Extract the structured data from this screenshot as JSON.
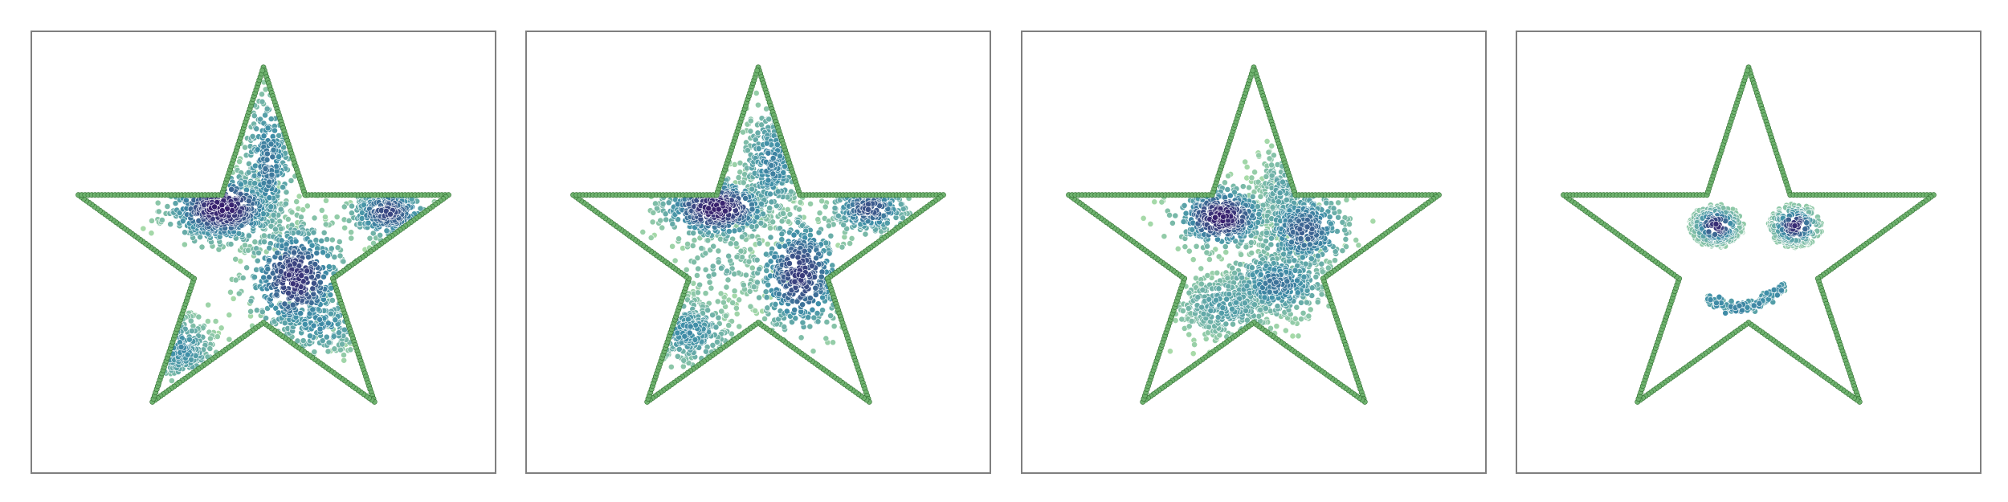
{
  "figure": {
    "panels": 4
  },
  "colors": {
    "boundary_fill": "#6fb26f",
    "boundary_stroke": "#2f6d2f",
    "low_density": "#a8dba8",
    "mid_density": "#3f8fa8",
    "high_density": "#38206e",
    "frame": "#7f7f7f"
  },
  "chart_data": [
    {
      "type": "scatter",
      "title": "",
      "xlabel": "",
      "ylabel": "",
      "grid": false,
      "axes_ticks": false,
      "xlim": [
        0,
        1
      ],
      "ylim": [
        0,
        1
      ],
      "boundary": {
        "shape": "star",
        "vertices": [
          [
            0.5,
            0.92
          ],
          [
            0.59,
            0.63
          ],
          [
            0.9,
            0.63
          ],
          [
            0.65,
            0.44
          ],
          [
            0.74,
            0.16
          ],
          [
            0.5,
            0.34
          ],
          [
            0.26,
            0.16
          ],
          [
            0.35,
            0.44
          ],
          [
            0.1,
            0.63
          ],
          [
            0.41,
            0.63
          ]
        ]
      },
      "clusters": [
        {
          "cx": 0.41,
          "cy": 0.6,
          "sx": 0.06,
          "sy": 0.04,
          "n": 520,
          "density": 1.0
        },
        {
          "cx": 0.57,
          "cy": 0.44,
          "sx": 0.055,
          "sy": 0.065,
          "n": 480,
          "density": 0.9
        },
        {
          "cx": 0.77,
          "cy": 0.59,
          "sx": 0.045,
          "sy": 0.03,
          "n": 260,
          "density": 0.8
        },
        {
          "cx": 0.51,
          "cy": 0.7,
          "sx": 0.03,
          "sy": 0.09,
          "n": 300,
          "density": 0.6
        },
        {
          "cx": 0.32,
          "cy": 0.28,
          "sx": 0.04,
          "sy": 0.04,
          "n": 200,
          "density": 0.5
        },
        {
          "cx": 0.62,
          "cy": 0.34,
          "sx": 0.06,
          "sy": 0.04,
          "n": 180,
          "density": 0.5
        }
      ]
    },
    {
      "type": "scatter",
      "title": "",
      "xlabel": "",
      "ylabel": "",
      "grid": false,
      "axes_ticks": false,
      "xlim": [
        0,
        1
      ],
      "ylim": [
        0,
        1
      ],
      "boundary": {
        "shape": "star"
      },
      "clusters": [
        {
          "cx": 0.41,
          "cy": 0.6,
          "sx": 0.06,
          "sy": 0.035,
          "n": 460,
          "density": 1.0
        },
        {
          "cx": 0.59,
          "cy": 0.45,
          "sx": 0.05,
          "sy": 0.07,
          "n": 440,
          "density": 0.85
        },
        {
          "cx": 0.74,
          "cy": 0.6,
          "sx": 0.045,
          "sy": 0.03,
          "n": 240,
          "density": 0.75
        },
        {
          "cx": 0.53,
          "cy": 0.7,
          "sx": 0.035,
          "sy": 0.07,
          "n": 300,
          "density": 0.55
        },
        {
          "cx": 0.35,
          "cy": 0.32,
          "sx": 0.05,
          "sy": 0.04,
          "n": 260,
          "density": 0.5
        },
        {
          "cx": 0.42,
          "cy": 0.47,
          "sx": 0.06,
          "sy": 0.06,
          "n": 120,
          "density": 0.25
        }
      ]
    },
    {
      "type": "scatter",
      "title": "",
      "xlabel": "",
      "ylabel": "",
      "grid": false,
      "axes_ticks": false,
      "xlim": [
        0,
        1
      ],
      "ylim": [
        0,
        1
      ],
      "boundary": {
        "shape": "star"
      },
      "clusters": [
        {
          "cx": 0.43,
          "cy": 0.58,
          "sx": 0.05,
          "sy": 0.035,
          "n": 420,
          "density": 1.0
        },
        {
          "cx": 0.61,
          "cy": 0.55,
          "sx": 0.05,
          "sy": 0.05,
          "n": 420,
          "density": 0.7
        },
        {
          "cx": 0.55,
          "cy": 0.43,
          "sx": 0.06,
          "sy": 0.04,
          "n": 380,
          "density": 0.6
        },
        {
          "cx": 0.44,
          "cy": 0.38,
          "sx": 0.06,
          "sy": 0.04,
          "n": 360,
          "density": 0.4
        },
        {
          "cx": 0.56,
          "cy": 0.64,
          "sx": 0.03,
          "sy": 0.05,
          "n": 240,
          "density": 0.35
        }
      ]
    },
    {
      "type": "scatter",
      "title": "",
      "xlabel": "",
      "ylabel": "",
      "grid": false,
      "axes_ticks": false,
      "xlim": [
        0,
        1
      ],
      "ylim": [
        0,
        1
      ],
      "boundary": {
        "shape": "star"
      },
      "face": {
        "eyes": [
          {
            "cx": 0.43,
            "cy": 0.56,
            "r": 0.033,
            "n": 230
          },
          {
            "cx": 0.6,
            "cy": 0.56,
            "r": 0.033,
            "n": 230
          }
        ],
        "smile": {
          "x_from": 0.41,
          "x_to": 0.58,
          "y_center": 0.41,
          "depth": 0.035,
          "n": 180
        }
      }
    }
  ]
}
